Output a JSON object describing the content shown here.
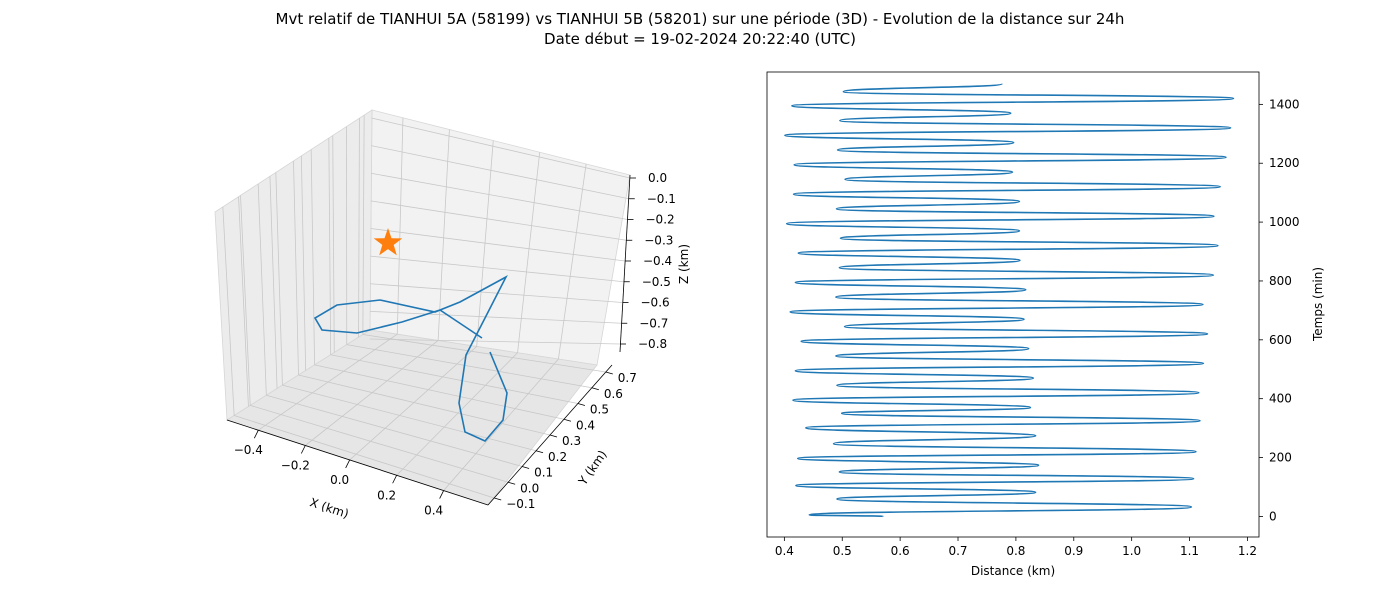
{
  "figure": {
    "title_line1": "Mvt relatif de TIANHUI 5A (58199) vs TIANHUI 5B (58201) sur une période (3D) - Evolution de la distance sur 24h",
    "title_line2": "Date début = 19-02-2024 20:22:40 (UTC)"
  },
  "chart_data": [
    {
      "type": "line",
      "projection": "3d",
      "xlabel": "X (km)",
      "ylabel": "Y (km)",
      "zlabel": "Z (km)",
      "xticks": [
        "−0.4",
        "−0.2",
        "0.0",
        "0.2",
        "0.4"
      ],
      "yticks": [
        "−0.1",
        "0.0",
        "0.1",
        "0.2",
        "0.3",
        "0.4",
        "0.5",
        "0.6",
        "0.7"
      ],
      "zticks": [
        "0.0",
        "−0.1",
        "−0.2",
        "−0.3",
        "−0.4",
        "−0.5",
        "−0.6",
        "−0.7",
        "−0.8"
      ],
      "grid": true,
      "marker": {
        "shape": "star",
        "color": "#ff7f0e"
      },
      "line_color": "#1f77b4"
    },
    {
      "type": "line",
      "xlabel": "Distance (km)",
      "ylabel": "Temps (min)",
      "ylabel_position": "right",
      "xlim": [
        0.37,
        1.22
      ],
      "ylim": [
        -70,
        1510
      ],
      "xticks": [
        0.4,
        0.5,
        0.6,
        0.7,
        0.8,
        0.9,
        1.0,
        1.1,
        1.2
      ],
      "yticks": [
        0,
        200,
        400,
        600,
        800,
        1000,
        1200,
        1400
      ],
      "line_color": "#1f77b4",
      "series": [
        {
          "x": [
            0.571,
            0.443,
            1.103,
            0.491,
            0.834,
            0.42,
            1.107,
            0.495,
            0.839,
            0.423,
            1.111,
            0.485,
            0.834,
            0.437,
            1.118,
            0.499,
            0.825,
            0.415,
            1.116,
            0.491,
            0.83,
            0.419,
            1.124,
            0.489,
            0.822,
            0.429,
            1.131,
            0.504,
            0.814,
            0.41,
            1.123,
            0.489,
            0.817,
            0.419,
            1.141,
            0.495,
            0.807,
            0.424,
            1.149,
            0.497,
            0.806,
            0.404,
            1.142,
            0.49,
            0.806,
            0.416,
            1.153,
            0.505,
            0.794,
            0.417,
            1.163,
            0.492,
            0.796,
            0.401,
            1.171,
            0.496,
            0.791,
            0.413,
            1.176,
            0.502,
            0.776
          ],
          "y": [
            0,
            5,
            32,
            59,
            82,
            105,
            128,
            151,
            174,
            197,
            220,
            247,
            274,
            301,
            325,
            350,
            370,
            395,
            420,
            445,
            470,
            495,
            520,
            545,
            570,
            595,
            620,
            645,
            670,
            695,
            720,
            745,
            770,
            795,
            820,
            845,
            870,
            895,
            920,
            945,
            970,
            995,
            1020,
            1045,
            1070,
            1095,
            1120,
            1145,
            1170,
            1195,
            1220,
            1245,
            1270,
            1295,
            1320,
            1345,
            1370,
            1395,
            1420,
            1443,
            1470
          ]
        }
      ]
    }
  ]
}
